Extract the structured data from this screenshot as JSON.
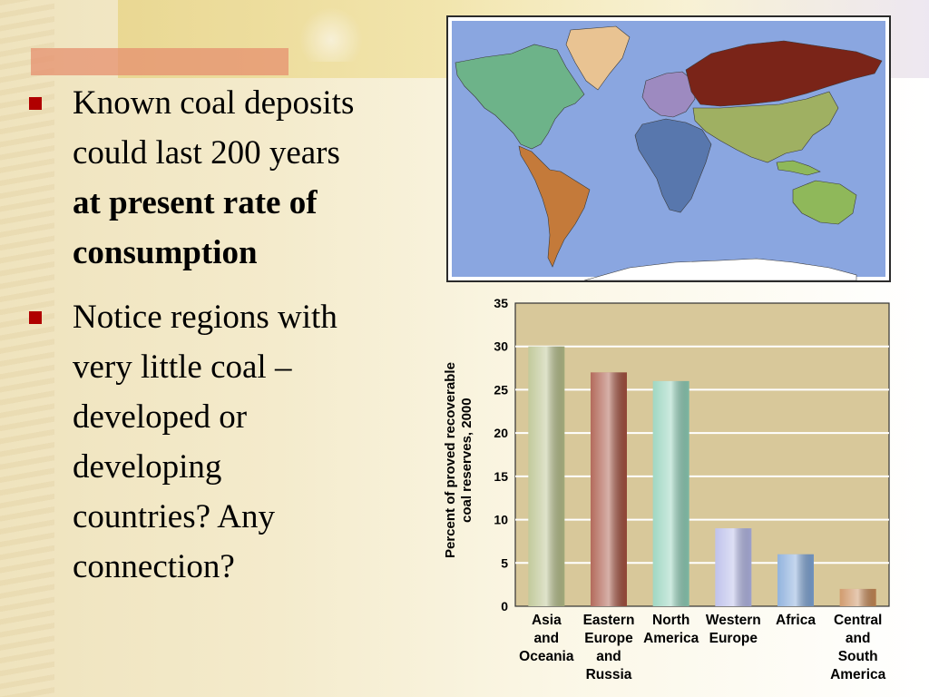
{
  "bullets": [
    {
      "line1": "Known coal deposits",
      "line2": "could last 200 years",
      "bold1": "at present rate of",
      "bold2": "consumption"
    },
    {
      "lines": [
        "Notice regions with",
        "very little coal –",
        "developed or",
        "developing",
        "countries? Any",
        "connection?"
      ]
    }
  ],
  "map": {
    "colors": {
      "ocean": "#8aa6e0",
      "north_america": "#6db389",
      "greenland": "#e9c392",
      "latin_america": "#c47a3a",
      "europe": "#9d8ac0",
      "russia": "#7a2418",
      "africa": "#5877ad",
      "asia": "#9fb062",
      "oceania": "#8fb85a",
      "antarctica": "#ffffff"
    }
  },
  "chart_data": {
    "type": "bar",
    "categories": [
      [
        "Asia",
        "and",
        "Oceania"
      ],
      [
        "Eastern",
        "Europe",
        "and",
        "Russia"
      ],
      [
        "North",
        "America"
      ],
      [
        "Western",
        "Europe"
      ],
      [
        "Africa"
      ],
      [
        "Central",
        "and",
        "South",
        "America"
      ]
    ],
    "values": [
      30,
      27,
      26,
      9,
      6,
      2
    ],
    "colors": [
      "#b7c08a",
      "#a6513f",
      "#8fd0b8",
      "#b4b8e8",
      "#7fa6d8",
      "#c98a55"
    ],
    "ylabel_lines": [
      "Percent of proved recoverable",
      "coal reserves, 2000"
    ],
    "ylim": [
      0,
      35
    ],
    "yticks": [
      0,
      5,
      10,
      15,
      20,
      25,
      30,
      35
    ],
    "grid": true,
    "plot_bg": "#d8c89a"
  }
}
